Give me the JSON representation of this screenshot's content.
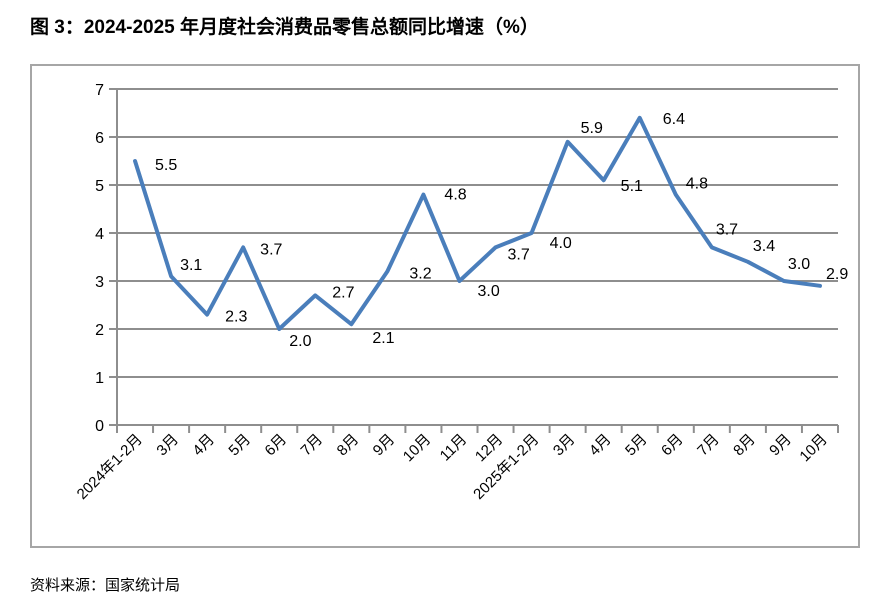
{
  "title": "图 3：2024-2025 年月度社会消费品零售总额同比增速（%）",
  "source": "资料来源：国家统计局",
  "chart_data": {
    "type": "line",
    "title": "图 3：2024-2025 年月度社会消费品零售总额同比增速（%）",
    "categories": [
      "2024年1-2月",
      "3月",
      "4月",
      "5月",
      "6月",
      "7月",
      "8月",
      "9月",
      "10月",
      "11月",
      "12月",
      "2025年1-2月",
      "3月",
      "4月",
      "5月",
      "6月",
      "7月",
      "8月",
      "9月",
      "10月"
    ],
    "values": [
      5.5,
      3.1,
      2.3,
      3.7,
      2.0,
      2.7,
      2.1,
      3.2,
      4.8,
      3.0,
      3.7,
      4.0,
      5.9,
      5.1,
      6.4,
      4.8,
      3.7,
      3.4,
      3.0,
      2.9
    ],
    "data_labels": [
      "5.5",
      "3.1",
      "2.3",
      "3.7",
      "2.0",
      "2.7",
      "2.1",
      "3.2",
      "4.8",
      "3.0",
      "3.7",
      "4.0",
      "5.9",
      "5.1",
      "6.4",
      "4.8",
      "3.7",
      "3.4",
      "3.0",
      "2.9"
    ],
    "xlabel": "",
    "ylabel": "",
    "ylim": [
      0,
      7
    ],
    "yticks": [
      0,
      1,
      2,
      3,
      4,
      5,
      6,
      7
    ],
    "grid": true,
    "legend": false,
    "line_color": "#4A7EBB",
    "gridline_color": "#8e8e8e",
    "axis_color": "#8e8e8e",
    "border_color": "#a6a6a6",
    "label_color": "#000000"
  }
}
